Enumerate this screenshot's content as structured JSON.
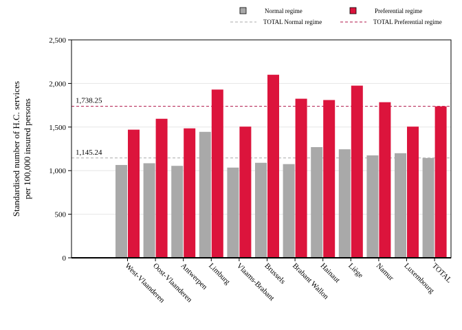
{
  "chart_data": {
    "type": "bar",
    "ylabel_lines": [
      "Standardised number of H.C. services",
      "per 100,000 insured persons"
    ],
    "xlabel": "",
    "ylim": [
      0,
      2500
    ],
    "yticks": [
      0,
      500,
      1000,
      1500,
      2000,
      2500
    ],
    "ytick_labels": [
      "0",
      "500",
      "1,000",
      "1,500",
      "2,000",
      "2,500"
    ],
    "grid": true,
    "legend_position": "top",
    "categories": [
      "West-Vlaanderen",
      "Oost-Vlaanderen",
      "Antwerpen",
      "Limburg",
      "Vlaams-Brabant",
      "Brussels",
      "Brabant Wallon",
      "Hainaut",
      "Liège",
      "Namur",
      "Luxembourg",
      "TOTAL"
    ],
    "series": [
      {
        "name": "Normal regime",
        "color": "#a9a9a9",
        "values": [
          1065,
          1085,
          1055,
          1445,
          1035,
          1090,
          1075,
          1270,
          1245,
          1175,
          1200,
          1145
        ]
      },
      {
        "name": "Preferential regime",
        "color": "#dc143c",
        "values": [
          1470,
          1595,
          1485,
          1930,
          1505,
          2100,
          1825,
          1810,
          1975,
          1785,
          1505,
          1738
        ]
      }
    ],
    "reference_lines": [
      {
        "name": "TOTAL Normal regime",
        "value": 1145.24,
        "label": "1,145.24",
        "color": "#a9a9a9"
      },
      {
        "name": "TOTAL Preferential regime",
        "value": 1738.25,
        "label": "1,738.25",
        "color": "#b0154a"
      }
    ]
  }
}
